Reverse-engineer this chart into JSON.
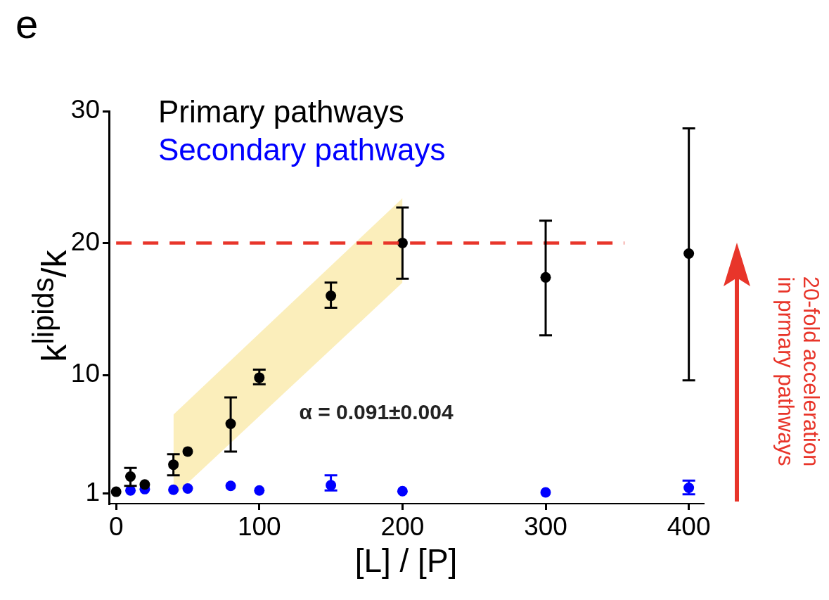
{
  "chart_data": {
    "type": "scatter",
    "title": "e",
    "xlabel": "[L] / [P]",
    "ylabel": "k$^{lipids}$/k",
    "annotations": [
      "α = 0.091±0.004",
      "20-fold acceleration\nin prmary pathways"
    ],
    "x": [
      0,
      10,
      20,
      40,
      50,
      80,
      100,
      150,
      200,
      300,
      400
    ],
    "series": [
      {
        "type": "area",
        "color": "#fbeebb",
        "x": [
          40,
          200
        ],
        "values": [
          null,
          null
        ],
        "marker": "none",
        "lower": [
          0.8,
          17.0
        ],
        "upper": [
          7.0,
          23.4
        ]
      },
      {
        "type": "line",
        "color": "#e8352a",
        "x": [
          0,
          355
        ],
        "values": [
          20,
          20
        ],
        "line_style": "dashed",
        "marker": "none"
      },
      {
        "name": "Primary pathways",
        "color": "#000000",
        "values": [
          1.15,
          2.3,
          1.7,
          3.2,
          4.2,
          6.3,
          9.8,
          16.0,
          20.0,
          17.4,
          19.2
        ],
        "errors": [
          null,
          [
            1.6,
            2.95
          ],
          null,
          [
            2.4,
            4.0
          ],
          null,
          [
            4.2,
            8.3
          ],
          [
            9.3,
            10.4
          ],
          [
            15.1,
            17.0
          ],
          [
            17.3,
            22.7
          ],
          [
            13.0,
            21.7
          ],
          [
            9.6,
            28.7
          ]
        ]
      },
      {
        "name": "Secondary pathways",
        "color": "#0000ff",
        "x": [
          10,
          20,
          40,
          50,
          80,
          100,
          150,
          200,
          300,
          400
        ],
        "values": [
          1.25,
          1.35,
          1.3,
          1.4,
          1.6,
          1.25,
          1.65,
          1.2,
          1.1,
          1.45
        ],
        "errors": [
          null,
          null,
          null,
          null,
          null,
          null,
          [
            1.25,
            2.4
          ],
          null,
          null,
          [
            0.95,
            2.0
          ]
        ]
      }
    ],
    "xlim": [
      -5,
      410
    ],
    "xticks": [
      0,
      100,
      200,
      300,
      400
    ],
    "ylim": [
      0.25,
      30
    ],
    "yticks": [
      1,
      10,
      20,
      30
    ],
    "grid": false,
    "legend": "top left",
    "marker": "circle"
  }
}
